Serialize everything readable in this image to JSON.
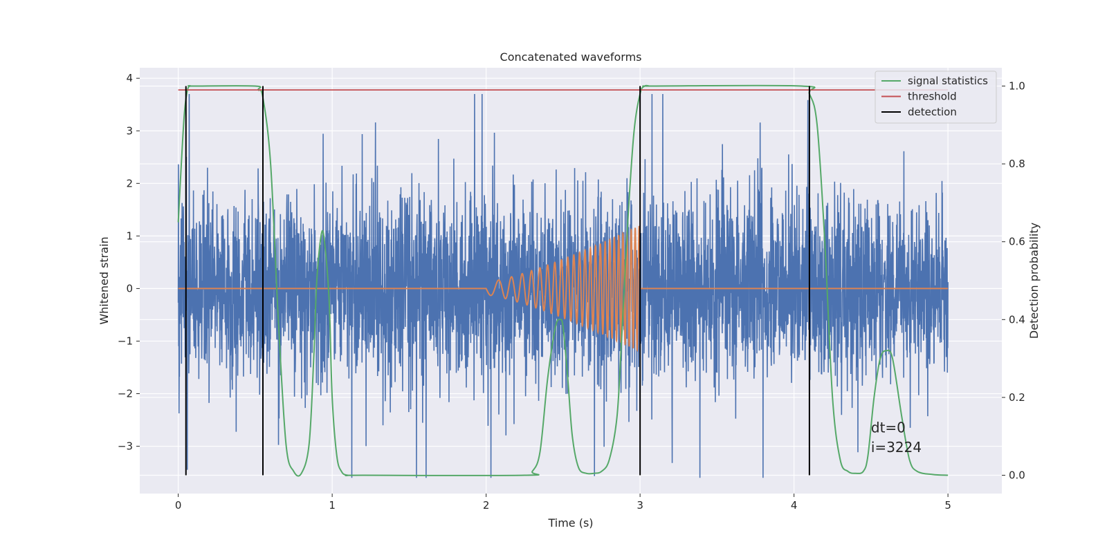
{
  "chart_data": {
    "type": "line",
    "title": "Concatenated waveforms",
    "xlabel": "Time (s)",
    "ylabel": "Whitened strain",
    "ylabel_right": "Detection probability",
    "xlim": [
      -0.25,
      5.35
    ],
    "ylim": [
      -3.9,
      4.2
    ],
    "ylim_right": [
      -0.047,
      1.047
    ],
    "xticks": [
      0,
      1,
      2,
      3,
      4,
      5
    ],
    "xtick_labels": [
      "0",
      "1",
      "2",
      "3",
      "4",
      "5"
    ],
    "yticks": [
      -3,
      -2,
      -1,
      0,
      1,
      2,
      3,
      4
    ],
    "ytick_labels": [
      "−3",
      "−2",
      "−1",
      "0",
      "1",
      "2",
      "3",
      "4"
    ],
    "yticks_right": [
      0.0,
      0.2,
      0.4,
      0.6,
      0.8,
      1.0
    ],
    "ytick_labels_right": [
      "0.0",
      "0.2",
      "0.4",
      "0.6",
      "0.8",
      "1.0"
    ],
    "grid": true,
    "legend_placement": "top-right",
    "series": [
      {
        "axis": "left",
        "kind": "noise",
        "color": "#4c72b0",
        "x_range": [
          0,
          5
        ],
        "amplitude_std": 0.85,
        "peak_range": [
          -3.6,
          3.7
        ]
      },
      {
        "axis": "left",
        "kind": "chirp",
        "color": "#dd8452",
        "x_range": [
          0,
          5
        ],
        "chirp_start": 2.0,
        "chirp_end": 3.0,
        "chirp_end_amplitude": 1.2
      },
      {
        "axis": "right",
        "name": "signal statistics",
        "color": "#55a868",
        "x": [
          0.0,
          0.02,
          0.04,
          0.06,
          0.08,
          0.1,
          0.5,
          0.52,
          0.55,
          0.6,
          0.65,
          0.7,
          0.75,
          0.8,
          0.85,
          0.88,
          0.9,
          0.93,
          0.95,
          0.98,
          1.0,
          1.03,
          1.06,
          1.1,
          1.2,
          2.25,
          2.3,
          2.35,
          2.4,
          2.45,
          2.48,
          2.5,
          2.53,
          2.56,
          2.6,
          2.65,
          2.7,
          2.75,
          2.8,
          2.85,
          2.88,
          2.92,
          2.96,
          3.0,
          3.03,
          3.06,
          3.1,
          4.05,
          4.1,
          4.15,
          4.2,
          4.25,
          4.3,
          4.35,
          4.4,
          4.45,
          4.48,
          4.52,
          4.56,
          4.6,
          4.64,
          4.7,
          4.75,
          4.8,
          4.9,
          5.0
        ],
        "y": [
          0.65,
          0.8,
          0.93,
          0.99,
          1.0,
          1.0,
          1.0,
          0.99,
          0.97,
          0.8,
          0.4,
          0.08,
          0.01,
          0.005,
          0.08,
          0.3,
          0.5,
          0.62,
          0.6,
          0.45,
          0.2,
          0.05,
          0.01,
          0.0,
          0.0,
          0.0,
          0.01,
          0.06,
          0.25,
          0.38,
          0.4,
          0.38,
          0.25,
          0.1,
          0.02,
          0.005,
          0.005,
          0.01,
          0.04,
          0.15,
          0.35,
          0.65,
          0.88,
          0.98,
          1.0,
          1.0,
          1.0,
          1.0,
          0.98,
          0.9,
          0.6,
          0.2,
          0.04,
          0.01,
          0.005,
          0.01,
          0.05,
          0.2,
          0.3,
          0.32,
          0.3,
          0.15,
          0.04,
          0.01,
          0.002,
          0.0
        ]
      },
      {
        "axis": "right",
        "name": "threshold",
        "color": "#c44e52",
        "x": [
          0,
          5
        ],
        "y": [
          0.99,
          0.99
        ]
      },
      {
        "axis": "right",
        "name": "detection",
        "color": "#000000",
        "vlines_x": [
          0.05,
          0.55,
          3.0,
          4.1
        ],
        "vlines_y": [
          0.0,
          1.0
        ]
      }
    ],
    "annotations": [
      {
        "text": "dt=0",
        "x": 4.5,
        "y_right": 0.11
      },
      {
        "text": "i=3224",
        "x": 4.5,
        "y_right": 0.06
      }
    ]
  }
}
